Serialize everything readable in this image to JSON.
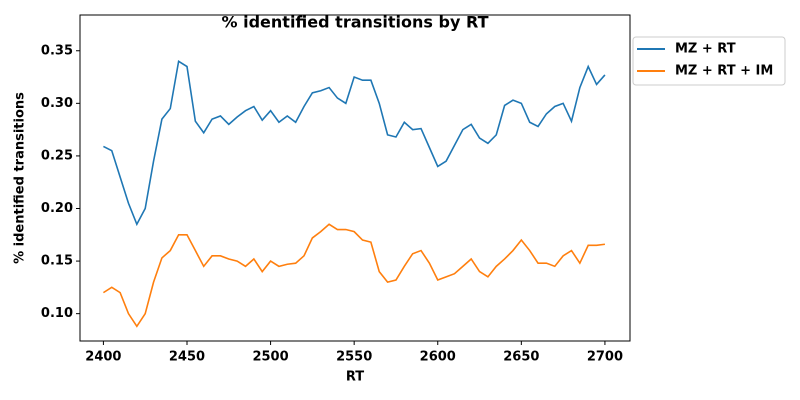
{
  "chart_data": {
    "type": "line",
    "title": "% identified transitions by RT",
    "x_label": "RT",
    "y_label": "% identified transitions",
    "x": [
      2400,
      2405,
      2410,
      2415,
      2420,
      2425,
      2430,
      2435,
      2440,
      2445,
      2450,
      2455,
      2460,
      2465,
      2470,
      2475,
      2480,
      2485,
      2490,
      2495,
      2500,
      2505,
      2510,
      2515,
      2520,
      2525,
      2530,
      2535,
      2540,
      2545,
      2550,
      2555,
      2560,
      2565,
      2570,
      2575,
      2580,
      2585,
      2590,
      2595,
      2600,
      2605,
      2610,
      2615,
      2620,
      2625,
      2630,
      2635,
      2640,
      2645,
      2650,
      2655,
      2660,
      2665,
      2670,
      2675,
      2680,
      2685,
      2690,
      2695,
      2700
    ],
    "series": [
      {
        "name": "MZ + RT",
        "color": "#1f77b4",
        "values": [
          0.259,
          0.255,
          0.23,
          0.205,
          0.185,
          0.2,
          0.245,
          0.285,
          0.295,
          0.34,
          0.335,
          0.283,
          0.272,
          0.285,
          0.288,
          0.28,
          0.287,
          0.293,
          0.297,
          0.284,
          0.293,
          0.282,
          0.288,
          0.282,
          0.297,
          0.31,
          0.312,
          0.315,
          0.305,
          0.3,
          0.325,
          0.322,
          0.322,
          0.3,
          0.27,
          0.268,
          0.282,
          0.275,
          0.276,
          0.258,
          0.24,
          0.245,
          0.26,
          0.275,
          0.28,
          0.267,
          0.262,
          0.27,
          0.298,
          0.303,
          0.3,
          0.282,
          0.278,
          0.29,
          0.297,
          0.3,
          0.283,
          0.315,
          0.335,
          0.318,
          0.327
        ]
      },
      {
        "name": "MZ + RT + IM",
        "color": "#ff7f0e",
        "values": [
          0.12,
          0.125,
          0.12,
          0.1,
          0.088,
          0.1,
          0.13,
          0.153,
          0.16,
          0.175,
          0.175,
          0.16,
          0.145,
          0.155,
          0.155,
          0.152,
          0.15,
          0.145,
          0.152,
          0.14,
          0.15,
          0.145,
          0.147,
          0.148,
          0.155,
          0.172,
          0.178,
          0.185,
          0.18,
          0.18,
          0.178,
          0.17,
          0.168,
          0.14,
          0.13,
          0.132,
          0.145,
          0.157,
          0.16,
          0.148,
          0.132,
          0.135,
          0.138,
          0.145,
          0.152,
          0.14,
          0.135,
          0.145,
          0.152,
          0.16,
          0.17,
          0.16,
          0.148,
          0.148,
          0.145,
          0.155,
          0.16,
          0.148,
          0.165,
          0.165,
          0.166
        ]
      }
    ],
    "xlim": [
      2386,
      2715
    ],
    "ylim": [
      0.074,
      0.384
    ],
    "xticks": [
      2400,
      2450,
      2500,
      2550,
      2600,
      2650,
      2700
    ],
    "yticks": [
      {
        "value": 0.1,
        "label": "0.10"
      },
      0.15,
      {
        "value": 0.2,
        "label": "0.20"
      },
      0.25,
      {
        "value": 0.3,
        "label": "0.30"
      },
      0.35
    ],
    "legend": "outside upper right"
  }
}
